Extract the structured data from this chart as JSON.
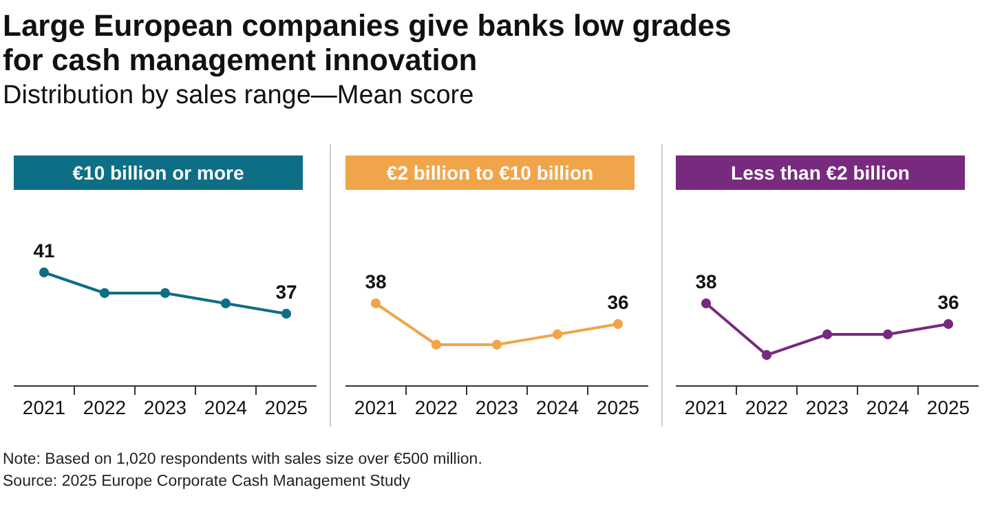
{
  "chart_data": [
    {
      "type": "other",
      "title": "Large European companies give banks low grades for cash management innovation",
      "subtitle": "Distribution by sales range—Mean score",
      "annotations": [
        "Note: Based on 1,020 respondents with sales size over €500 million.",
        "Source: 2025 Europe Corporate Cash Management Study"
      ]
    },
    {
      "type": "line",
      "title": "€10 billion or more",
      "categories": [
        "2021",
        "2022",
        "2023",
        "2024",
        "2025"
      ],
      "series": [
        {
          "color": "#0e6e85",
          "values": [
            41,
            39,
            39,
            38,
            37
          ],
          "value_labels": [
            "41",
            null,
            null,
            null,
            "37"
          ]
        }
      ],
      "tick_labels": "x",
      "marker": "circle"
    },
    {
      "type": "line",
      "title": "€2 billion to €10 billion",
      "categories": [
        "2021",
        "2022",
        "2023",
        "2024",
        "2025"
      ],
      "series": [
        {
          "color": "#f0a54a",
          "values": [
            38,
            34,
            34,
            35,
            36
          ],
          "value_labels": [
            "38",
            null,
            null,
            null,
            "36"
          ]
        }
      ],
      "tick_labels": "x",
      "marker": "circle"
    },
    {
      "type": "line",
      "title": "Less than €2 billion",
      "categories": [
        "2021",
        "2022",
        "2023",
        "2024",
        "2025"
      ],
      "series": [
        {
          "color": "#772a7e",
          "values": [
            38,
            33,
            35,
            35,
            36
          ],
          "value_labels": [
            "38",
            null,
            null,
            null,
            "36"
          ]
        }
      ],
      "tick_labels": "x",
      "marker": "circle"
    }
  ]
}
